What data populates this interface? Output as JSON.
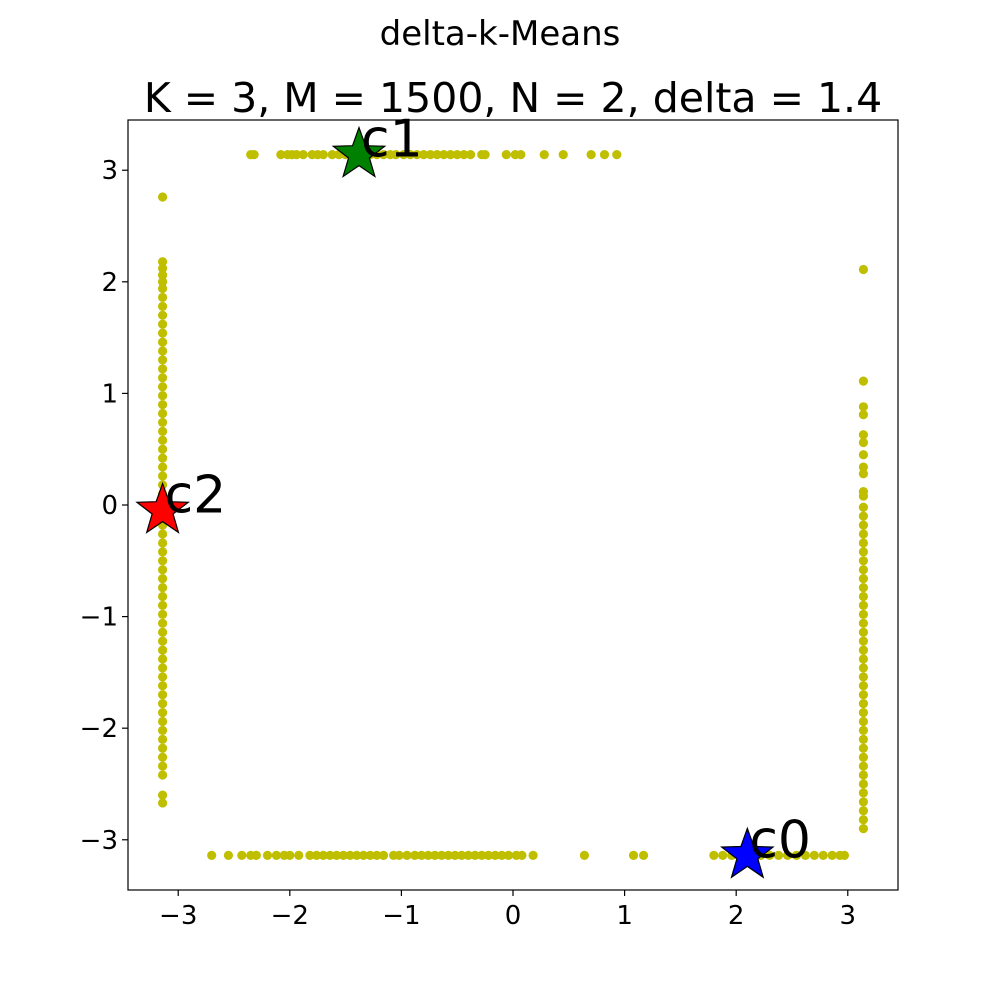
{
  "figure": {
    "suptitle": "delta-k-Means"
  },
  "chart_data": {
    "type": "scatter",
    "title": "K = 3, M = 1500, N = 2, delta = 1.4",
    "xlabel": "",
    "ylabel": "",
    "xlim": [
      -3.45,
      3.45
    ],
    "ylim": [
      -3.45,
      3.45
    ],
    "xticks": [
      -3,
      -2,
      -1,
      0,
      1,
      2,
      3
    ],
    "yticks": [
      -3,
      -2,
      -1,
      0,
      1,
      2,
      3
    ],
    "xtick_labels": [
      "−3",
      "−2",
      "−1",
      "0",
      "1",
      "2",
      "3"
    ],
    "ytick_labels": [
      "−3",
      "−2",
      "−1",
      "0",
      "1",
      "2",
      "3"
    ],
    "grid": false,
    "point_color": "#bfbf00",
    "series": [
      {
        "points": [
          [
            -2.35,
            3.14
          ],
          [
            -2.32,
            3.14
          ],
          [
            -2.08,
            3.14
          ],
          [
            -2.02,
            3.14
          ],
          [
            -1.98,
            3.14
          ],
          [
            -1.94,
            3.14
          ],
          [
            -1.88,
            3.14
          ],
          [
            -1.8,
            3.14
          ],
          [
            -1.75,
            3.14
          ],
          [
            -1.7,
            3.14
          ],
          [
            -1.62,
            3.14
          ],
          [
            -1.56,
            3.14
          ],
          [
            -1.5,
            3.14
          ],
          [
            -1.45,
            3.14
          ],
          [
            -1.4,
            3.14
          ],
          [
            -1.34,
            3.14
          ],
          [
            -1.28,
            3.14
          ],
          [
            -1.22,
            3.14
          ],
          [
            -1.16,
            3.14
          ],
          [
            -1.1,
            3.14
          ],
          [
            -1.05,
            3.14
          ],
          [
            -0.98,
            3.14
          ],
          [
            -0.92,
            3.14
          ],
          [
            -0.86,
            3.14
          ],
          [
            -0.8,
            3.14
          ],
          [
            -0.74,
            3.14
          ],
          [
            -0.68,
            3.14
          ],
          [
            -0.62,
            3.14
          ],
          [
            -0.56,
            3.14
          ],
          [
            -0.5,
            3.14
          ],
          [
            -0.44,
            3.14
          ],
          [
            -0.38,
            3.14
          ],
          [
            -0.28,
            3.14
          ],
          [
            -0.25,
            3.14
          ],
          [
            -0.06,
            3.14
          ],
          [
            0.02,
            3.14
          ],
          [
            0.07,
            3.14
          ],
          [
            0.28,
            3.14
          ],
          [
            0.45,
            3.14
          ],
          [
            0.7,
            3.14
          ],
          [
            0.82,
            3.14
          ],
          [
            0.93,
            3.14
          ],
          [
            -2.7,
            -3.14
          ],
          [
            -2.55,
            -3.14
          ],
          [
            -2.43,
            -3.14
          ],
          [
            -2.35,
            -3.14
          ],
          [
            -2.3,
            -3.14
          ],
          [
            -2.2,
            -3.14
          ],
          [
            -2.12,
            -3.14
          ],
          [
            -2.05,
            -3.14
          ],
          [
            -2.0,
            -3.14
          ],
          [
            -1.92,
            -3.14
          ],
          [
            -1.82,
            -3.14
          ],
          [
            -1.76,
            -3.14
          ],
          [
            -1.7,
            -3.14
          ],
          [
            -1.64,
            -3.14
          ],
          [
            -1.58,
            -3.14
          ],
          [
            -1.52,
            -3.14
          ],
          [
            -1.46,
            -3.14
          ],
          [
            -1.4,
            -3.14
          ],
          [
            -1.34,
            -3.14
          ],
          [
            -1.28,
            -3.14
          ],
          [
            -1.22,
            -3.14
          ],
          [
            -1.16,
            -3.14
          ],
          [
            -1.07,
            -3.14
          ],
          [
            -1.02,
            -3.14
          ],
          [
            -0.95,
            -3.14
          ],
          [
            -0.88,
            -3.14
          ],
          [
            -0.82,
            -3.14
          ],
          [
            -0.76,
            -3.14
          ],
          [
            -0.7,
            -3.14
          ],
          [
            -0.64,
            -3.14
          ],
          [
            -0.58,
            -3.14
          ],
          [
            -0.52,
            -3.14
          ],
          [
            -0.46,
            -3.14
          ],
          [
            -0.4,
            -3.14
          ],
          [
            -0.34,
            -3.14
          ],
          [
            -0.28,
            -3.14
          ],
          [
            -0.22,
            -3.14
          ],
          [
            -0.16,
            -3.14
          ],
          [
            -0.1,
            -3.14
          ],
          [
            -0.04,
            -3.14
          ],
          [
            0.03,
            -3.14
          ],
          [
            0.08,
            -3.14
          ],
          [
            0.18,
            -3.14
          ],
          [
            0.64,
            -3.14
          ],
          [
            1.08,
            -3.14
          ],
          [
            1.17,
            -3.14
          ],
          [
            1.8,
            -3.14
          ],
          [
            1.88,
            -3.14
          ],
          [
            1.96,
            -3.14
          ],
          [
            2.04,
            -3.14
          ],
          [
            2.14,
            -3.14
          ],
          [
            2.22,
            -3.14
          ],
          [
            2.3,
            -3.14
          ],
          [
            2.38,
            -3.14
          ],
          [
            2.46,
            -3.14
          ],
          [
            2.54,
            -3.14
          ],
          [
            2.62,
            -3.14
          ],
          [
            2.7,
            -3.14
          ],
          [
            2.78,
            -3.14
          ],
          [
            2.86,
            -3.14
          ],
          [
            2.93,
            -3.14
          ],
          [
            2.97,
            -3.14
          ],
          [
            -3.14,
            2.76
          ],
          [
            -3.14,
            2.18
          ],
          [
            -3.14,
            2.12
          ],
          [
            -3.14,
            2.06
          ],
          [
            -3.14,
            2.0
          ],
          [
            -3.14,
            1.94
          ],
          [
            -3.14,
            1.86
          ],
          [
            -3.14,
            1.78
          ],
          [
            -3.14,
            1.7
          ],
          [
            -3.14,
            1.62
          ],
          [
            -3.14,
            1.54
          ],
          [
            -3.14,
            1.46
          ],
          [
            -3.14,
            1.38
          ],
          [
            -3.14,
            1.3
          ],
          [
            -3.14,
            1.22
          ],
          [
            -3.14,
            1.14
          ],
          [
            -3.14,
            1.06
          ],
          [
            -3.14,
            0.98
          ],
          [
            -3.14,
            0.9
          ],
          [
            -3.14,
            0.82
          ],
          [
            -3.14,
            0.74
          ],
          [
            -3.14,
            0.66
          ],
          [
            -3.14,
            0.58
          ],
          [
            -3.14,
            0.5
          ],
          [
            -3.14,
            0.42
          ],
          [
            -3.14,
            0.34
          ],
          [
            -3.14,
            0.26
          ],
          [
            -3.14,
            0.18
          ],
          [
            -3.14,
            0.1
          ],
          [
            -3.14,
            0.02
          ],
          [
            -3.14,
            -0.1
          ],
          [
            -3.14,
            -0.18
          ],
          [
            -3.14,
            -0.26
          ],
          [
            -3.14,
            -0.34
          ],
          [
            -3.14,
            -0.42
          ],
          [
            -3.14,
            -0.5
          ],
          [
            -3.14,
            -0.58
          ],
          [
            -3.14,
            -0.66
          ],
          [
            -3.14,
            -0.74
          ],
          [
            -3.14,
            -0.82
          ],
          [
            -3.14,
            -0.9
          ],
          [
            -3.14,
            -0.98
          ],
          [
            -3.14,
            -1.06
          ],
          [
            -3.14,
            -1.14
          ],
          [
            -3.14,
            -1.22
          ],
          [
            -3.14,
            -1.3
          ],
          [
            -3.14,
            -1.38
          ],
          [
            -3.14,
            -1.46
          ],
          [
            -3.14,
            -1.54
          ],
          [
            -3.14,
            -1.62
          ],
          [
            -3.14,
            -1.7
          ],
          [
            -3.14,
            -1.78
          ],
          [
            -3.14,
            -1.86
          ],
          [
            -3.14,
            -1.94
          ],
          [
            -3.14,
            -2.02
          ],
          [
            -3.14,
            -2.1
          ],
          [
            -3.14,
            -2.18
          ],
          [
            -3.14,
            -2.26
          ],
          [
            -3.14,
            -2.34
          ],
          [
            -3.14,
            -2.42
          ],
          [
            -3.14,
            -2.6
          ],
          [
            -3.14,
            -2.67
          ],
          [
            3.14,
            2.11
          ],
          [
            3.14,
            1.11
          ],
          [
            3.14,
            0.88
          ],
          [
            3.14,
            0.81
          ],
          [
            3.14,
            0.63
          ],
          [
            3.14,
            0.56
          ],
          [
            3.14,
            0.45
          ],
          [
            3.14,
            0.34
          ],
          [
            3.14,
            0.28
          ],
          [
            3.14,
            0.12
          ],
          [
            3.14,
            0.08
          ],
          [
            3.14,
            -0.02
          ],
          [
            3.14,
            -0.1
          ],
          [
            3.14,
            -0.18
          ],
          [
            3.14,
            -0.26
          ],
          [
            3.14,
            -0.34
          ],
          [
            3.14,
            -0.42
          ],
          [
            3.14,
            -0.5
          ],
          [
            3.14,
            -0.58
          ],
          [
            3.14,
            -0.66
          ],
          [
            3.14,
            -0.74
          ],
          [
            3.14,
            -0.82
          ],
          [
            3.14,
            -0.9
          ],
          [
            3.14,
            -0.98
          ],
          [
            3.14,
            -1.06
          ],
          [
            3.14,
            -1.14
          ],
          [
            3.14,
            -1.22
          ],
          [
            3.14,
            -1.3
          ],
          [
            3.14,
            -1.38
          ],
          [
            3.14,
            -1.46
          ],
          [
            3.14,
            -1.54
          ],
          [
            3.14,
            -1.62
          ],
          [
            3.14,
            -1.7
          ],
          [
            3.14,
            -1.78
          ],
          [
            3.14,
            -1.86
          ],
          [
            3.14,
            -1.94
          ],
          [
            3.14,
            -2.02
          ],
          [
            3.14,
            -2.1
          ],
          [
            3.14,
            -2.18
          ],
          [
            3.14,
            -2.26
          ],
          [
            3.14,
            -2.34
          ],
          [
            3.14,
            -2.42
          ],
          [
            3.14,
            -2.5
          ],
          [
            3.14,
            -2.58
          ],
          [
            3.14,
            -2.66
          ],
          [
            3.14,
            -2.74
          ],
          [
            3.14,
            -2.82
          ],
          [
            3.14,
            -2.9
          ]
        ]
      }
    ],
    "centroids": [
      {
        "label": "c0",
        "x": 2.1,
        "y": -3.14,
        "color": "#0000ff"
      },
      {
        "label": "c1",
        "x": -1.38,
        "y": 3.14,
        "color": "#008000"
      },
      {
        "label": "c2",
        "x": -3.14,
        "y": -0.05,
        "color": "#ff0000"
      }
    ]
  }
}
